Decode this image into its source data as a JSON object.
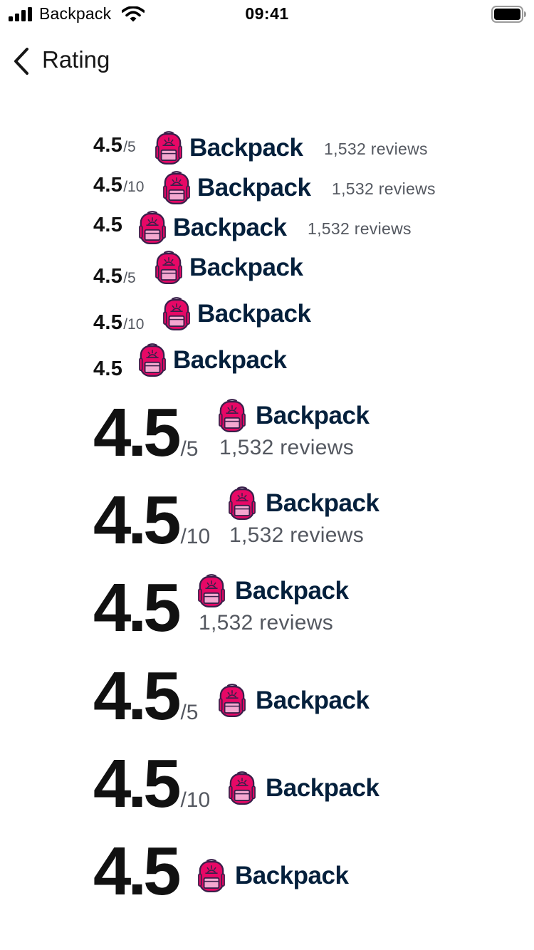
{
  "status_bar": {
    "carrier": "Backpack",
    "time": "09:41"
  },
  "nav": {
    "title": "Rating"
  },
  "brand_name": "Backpack",
  "colors": {
    "brand_text": "#05203c",
    "icon_pink": "#e70866",
    "icon_pocket": "#f4a8d0",
    "icon_outline": "#3a1f4a"
  },
  "ratings": [
    {
      "value": "4.5",
      "scale": "/5",
      "reviews": "1,532 reviews"
    },
    {
      "value": "4.5",
      "scale": "/10",
      "reviews": "1,532 reviews"
    },
    {
      "value": "4.5",
      "scale": "",
      "reviews": "1,532 reviews"
    },
    {
      "value": "4.5",
      "scale": "/5",
      "reviews": ""
    },
    {
      "value": "4.5",
      "scale": "/10",
      "reviews": ""
    },
    {
      "value": "4.5",
      "scale": "",
      "reviews": ""
    },
    {
      "value": "4.5",
      "scale": "/5",
      "reviews": "1,532 reviews"
    },
    {
      "value": "4.5",
      "scale": "/10",
      "reviews": "1,532 reviews"
    },
    {
      "value": "4.5",
      "scale": "",
      "reviews": "1,532 reviews"
    },
    {
      "value": "4.5",
      "scale": "/5",
      "reviews": ""
    },
    {
      "value": "4.5",
      "scale": "/10",
      "reviews": ""
    },
    {
      "value": "4.5",
      "scale": "",
      "reviews": ""
    }
  ]
}
